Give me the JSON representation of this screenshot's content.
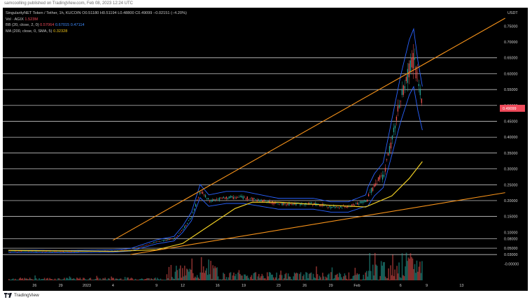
{
  "header": {
    "published_line": "samcoolling published on TradingView.com, Feb 08, 2023 12:24 UTC"
  },
  "legend": {
    "symbol": "SingularityNET Token / Tether, 1h, KUCOIN",
    "ohlc": "O0.51180  H0.51194  L0.48800  C0.49099  −0.02151 (−4.20%)",
    "vol_label": "Vol · AGIX",
    "vol_value": "1.523M",
    "bb_label": "BB (20, close, 2, 0)",
    "bb_values": [
      "0.57064",
      "0.67015",
      "0.47114"
    ],
    "ma_label": "MA (200, close, 0, SMA, 5)",
    "ma_value": "0.32328"
  },
  "footer": {
    "brand": "TradingView"
  },
  "colors": {
    "background": "#000000",
    "up": "#26a69a",
    "down": "#ef5350",
    "bb": "#2962ff",
    "ma": "#f2d024",
    "trendline": "#f7931a",
    "price_tag": "#ef4a5a",
    "hline": "#ffffff"
  },
  "chart_data": {
    "type": "line",
    "y_axis": {
      "unit": "USDT",
      "tick_labels": [
        "0.75000",
        "0.70000",
        "0.65000",
        "0.60000",
        "0.55000",
        "0.50000",
        "0.45000",
        "0.40000",
        "0.35000",
        "0.30000",
        "0.25000",
        "0.20000",
        "0.15000",
        "0.10000",
        "0.08000",
        "0.05000",
        "0.03000",
        "-0.00000"
      ],
      "ylim": [
        -0.005,
        0.775
      ]
    },
    "x_axis": {
      "tick_labels": [
        "26",
        "29",
        "2023",
        "4",
        "9",
        "12",
        "16",
        "19",
        "23",
        "26",
        "29",
        "Feb",
        "6",
        "9",
        "13"
      ]
    },
    "last_price": "0.49099",
    "horizontal_levels": [
      0.65,
      0.6,
      0.55,
      0.5,
      0.45,
      0.4,
      0.35,
      0.3,
      0.25,
      0.2,
      0.15,
      0.08,
      0.05,
      0.03
    ],
    "price_series": [
      [
        "Dec 23",
        0.04
      ],
      [
        "Dec 26",
        0.04
      ],
      [
        "Dec 29",
        0.039
      ],
      [
        "Jan 1",
        0.04
      ],
      [
        "Jan 4",
        0.041
      ],
      [
        "Jan 6",
        0.045
      ],
      [
        "Jan 9",
        0.07
      ],
      [
        "Jan 11",
        0.08
      ],
      [
        "Jan 12",
        0.11
      ],
      [
        "Jan 13",
        0.15
      ],
      [
        "Jan 14",
        0.23
      ],
      [
        "Jan 15",
        0.2
      ],
      [
        "Jan 17",
        0.21
      ],
      [
        "Jan 19",
        0.21
      ],
      [
        "Jan 21",
        0.2
      ],
      [
        "Jan 23",
        0.19
      ],
      [
        "Jan 25",
        0.19
      ],
      [
        "Jan 27",
        0.19
      ],
      [
        "Jan 29",
        0.18
      ],
      [
        "Jan 31",
        0.18
      ],
      [
        "Feb 2",
        0.2
      ],
      [
        "Feb 3",
        0.25
      ],
      [
        "Feb 4",
        0.28
      ],
      [
        "Feb 5",
        0.4
      ],
      [
        "Feb 6",
        0.52
      ],
      [
        "Feb 7",
        0.62
      ],
      [
        "Feb 7.5",
        0.65
      ],
      [
        "Feb 8",
        0.56
      ],
      [
        "Feb 8.5",
        0.491
      ]
    ],
    "ma_series": [
      [
        "Dec 23",
        0.043
      ],
      [
        "Jan 4",
        0.04
      ],
      [
        "Jan 9",
        0.045
      ],
      [
        "Jan 12",
        0.065
      ],
      [
        "Jan 15",
        0.12
      ],
      [
        "Jan 18",
        0.175
      ],
      [
        "Jan 20",
        0.195
      ],
      [
        "Jan 23",
        0.195
      ],
      [
        "Jan 26",
        0.19
      ],
      [
        "Jan 29",
        0.185
      ],
      [
        "Feb 2",
        0.18
      ],
      [
        "Feb 5",
        0.215
      ],
      [
        "Feb 7",
        0.27
      ],
      [
        "Feb 8.5",
        0.323
      ]
    ],
    "trendlines": [
      {
        "from": [
          "Jan 4",
          0.075
        ],
        "to": [
          "Feb 18",
          0.775
        ]
      },
      {
        "from": [
          "Jan 6",
          0.03
        ],
        "to": [
          "Feb 18",
          0.225
        ]
      }
    ]
  }
}
